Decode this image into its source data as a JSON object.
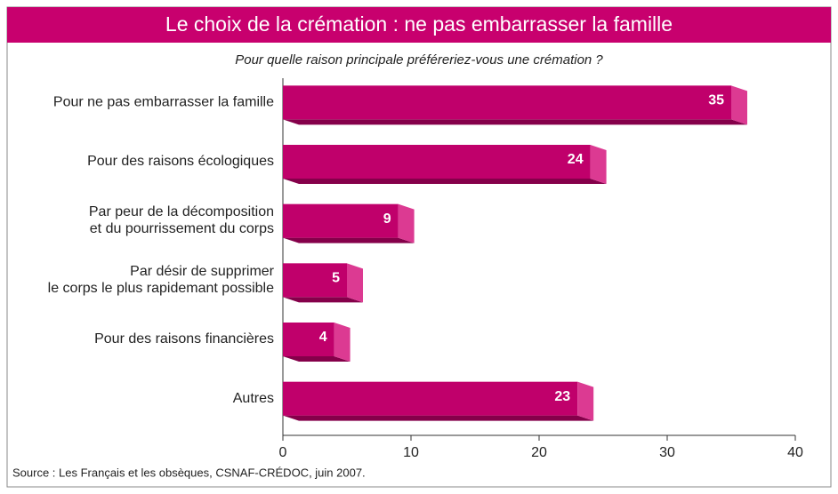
{
  "chart_data": {
    "type": "bar",
    "orientation": "horizontal",
    "title": "Le choix de la crémation : ne pas embarrasser la famille",
    "subtitle": "Pour quelle raison principale préféreriez-vous une crémation ?",
    "categories": [
      "Pour ne pas embarrasser la famille",
      "Pour des raisons écologiques",
      "Par peur de la décomposition\net du pourrissement du corps",
      "Par désir de supprimer\nle corps le plus rapidemant possible",
      "Pour des raisons financières",
      "Autres"
    ],
    "values": [
      35,
      24,
      9,
      5,
      4,
      23
    ],
    "color": "#c0006b",
    "xlim": [
      0,
      40
    ],
    "xticks": [
      0,
      10,
      20,
      30,
      40
    ],
    "source": "Source : Les Français et les obsèques, CSNAF-CRÉDOC, juin 2007."
  }
}
